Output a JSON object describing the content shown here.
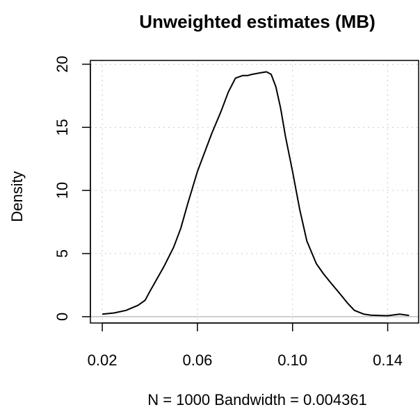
{
  "chart_data": {
    "type": "line",
    "title": "Unweighted estimates (MB)",
    "xlabel": "N = 1000   Bandwidth = 0.004361",
    "ylabel": "Density",
    "xlim": [
      0.015,
      0.153
    ],
    "ylim": [
      -0.5,
      20.3
    ],
    "x_ticks": [
      "0.02",
      "0.06",
      "0.10",
      "0.14"
    ],
    "y_ticks": [
      "0",
      "5",
      "10",
      "15",
      "20"
    ],
    "grid": true,
    "grid_style": "dotted",
    "zero_line": true,
    "line_color": "#000000",
    "series": [
      {
        "x": [
          0.02,
          0.025,
          0.03,
          0.035,
          0.038,
          0.04,
          0.043,
          0.046,
          0.05,
          0.053,
          0.056,
          0.06,
          0.063,
          0.066,
          0.07,
          0.073,
          0.076,
          0.079,
          0.081,
          0.083,
          0.086,
          0.089,
          0.091,
          0.093,
          0.095,
          0.097,
          0.1,
          0.103,
          0.106,
          0.11,
          0.113,
          0.116,
          0.12,
          0.123,
          0.126,
          0.13,
          0.133,
          0.136,
          0.14,
          0.145,
          0.149
        ],
        "y": [
          0.2,
          0.3,
          0.5,
          0.9,
          1.3,
          2.0,
          3.0,
          4.0,
          5.5,
          7.0,
          9.0,
          11.5,
          13.0,
          14.5,
          16.3,
          17.8,
          18.9,
          19.1,
          19.1,
          19.2,
          19.3,
          19.4,
          19.2,
          18.2,
          16.5,
          14.3,
          11.5,
          8.5,
          6.0,
          4.2,
          3.4,
          2.7,
          1.8,
          1.1,
          0.5,
          0.2,
          0.12,
          0.1,
          0.08,
          0.2,
          0.1
        ]
      }
    ]
  }
}
